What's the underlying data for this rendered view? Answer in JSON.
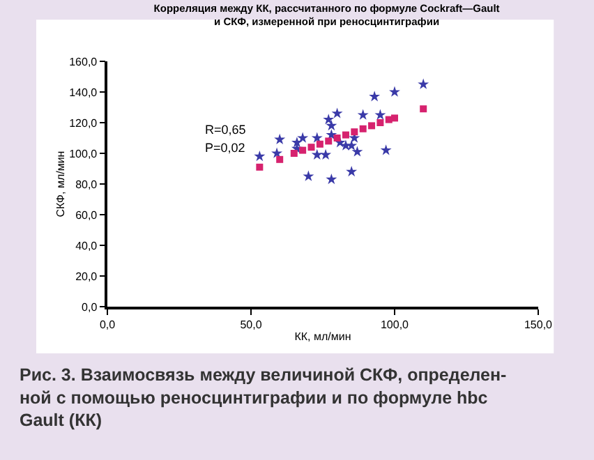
{
  "chart_data": {
    "type": "scatter",
    "title": "Корреляция между КК, рассчитанного по формуле Cockraft—Gault\nи СКФ, измеренной при реносцинтиграфии",
    "xlabel": "КК, мл/мин",
    "ylabel": "СКФ, мл/мин",
    "series": [
      {
        "color": "#3a3aa8",
        "marker": "star",
        "x": [
          53,
          59,
          60,
          66,
          66,
          68,
          70,
          73,
          73,
          76,
          77,
          78,
          78,
          78,
          80,
          81,
          83,
          85,
          85,
          86,
          87,
          89,
          93,
          95,
          97,
          100,
          110
        ],
        "values": [
          98,
          100,
          109,
          107,
          103,
          110,
          85,
          99,
          110,
          99,
          122,
          118,
          112,
          83,
          126,
          107,
          105,
          105,
          88,
          110,
          101,
          125,
          137,
          125,
          102,
          140,
          145
        ]
      },
      {
        "color": "#d6226e",
        "marker": "square",
        "x": [
          53,
          60,
          65,
          68,
          71,
          74,
          77,
          80,
          83,
          86,
          89,
          92,
          95,
          98,
          100,
          110
        ],
        "values": [
          91,
          96,
          100,
          102,
          104,
          106,
          108,
          110,
          112,
          114,
          116,
          118,
          120,
          122,
          123,
          129
        ]
      }
    ],
    "xlim": [
      0,
      150
    ],
    "xticks": [
      {
        "value": 0,
        "label": "0,0"
      },
      {
        "value": 50,
        "label": "50,0"
      },
      {
        "value": 100,
        "label": "100,0"
      },
      {
        "value": 150,
        "label": "150,0"
      }
    ],
    "ylim": [
      0,
      160
    ],
    "yticks": [
      {
        "value": 0,
        "label": "0,0"
      },
      {
        "value": 20,
        "label": "20,0"
      },
      {
        "value": 40,
        "label": "40,0"
      },
      {
        "value": 60,
        "label": "60,0"
      },
      {
        "value": 80,
        "label": "80,0"
      },
      {
        "value": 100,
        "label": "100,0"
      },
      {
        "value": 120,
        "label": "120,0"
      },
      {
        "value": 140,
        "label": "140,0"
      },
      {
        "value": 160,
        "label": "160,0"
      }
    ],
    "annotations": [
      "R=0,65",
      "P=0,02",
      "Рис. 3. Взаимосвязь между величиной СКФ, определен-\nной с помощью реносцинтиграфии и по формуле hbc\nGault (КК)"
    ]
  }
}
